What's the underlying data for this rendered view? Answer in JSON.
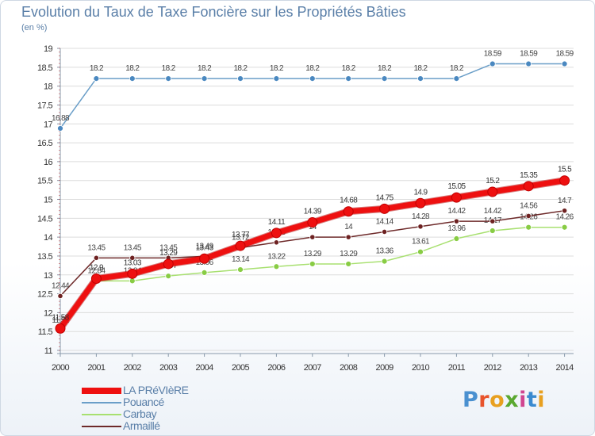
{
  "title": "Evolution du Taux de Taxe Foncière sur les Propriétés Bâties",
  "unit_label": "(en %)",
  "colors": {
    "title": "#5a7fa8",
    "axis": "#8899aa",
    "grid": "#dcdcdc"
  },
  "logo": {
    "letters": [
      "P",
      "r",
      "o",
      "x",
      "i",
      "t",
      "i"
    ],
    "colors": [
      "#4a90d0",
      "#e8532c",
      "#e8a020",
      "#5aa830",
      "#d04590",
      "#3a8ad0",
      "#e8a020"
    ]
  },
  "chart_data": {
    "type": "line",
    "title": "Evolution du Taux de Taxe Foncière sur les Propriétés Bâties",
    "ylabel": "(en %)",
    "xlabel": "",
    "ylim": [
      11,
      19
    ],
    "yticks": [
      11,
      11.5,
      12,
      12.5,
      13,
      13.5,
      14,
      14.5,
      15,
      15.5,
      16,
      16.5,
      17,
      17.5,
      18,
      18.5,
      19
    ],
    "categories": [
      "2000",
      "2001",
      "2002",
      "2003",
      "2004",
      "2005",
      "2006",
      "2007",
      "2008",
      "2009",
      "2010",
      "2011",
      "2012",
      "2013",
      "2014"
    ],
    "legend_position": "bottom-left",
    "series": [
      {
        "name": "Pouancé",
        "color": "#6a9ec8",
        "marker_color": "#4a88c0",
        "values": [
          16.88,
          18.2,
          18.2,
          18.2,
          18.2,
          18.2,
          18.2,
          18.2,
          18.2,
          18.2,
          18.2,
          18.2,
          18.59,
          18.59,
          18.59
        ],
        "labels": [
          "16.88",
          "18.2",
          "18.2",
          "18.2",
          "18.2",
          "18.2",
          "18.2",
          "18.2",
          "18.2",
          "18.2",
          "18.2",
          "18.2",
          "18.59",
          "18.59",
          "18.59"
        ]
      },
      {
        "name": "Carbay",
        "color": "#a8e070",
        "marker_color": "#88cc44",
        "values": [
          11.52,
          12.84,
          12.84,
          12.97,
          13.06,
          13.14,
          13.22,
          13.29,
          13.29,
          13.36,
          13.61,
          13.96,
          14.17,
          14.26,
          14.26
        ],
        "labels": [
          "11.52",
          "12.84",
          "12.84",
          "12.97",
          "13.06",
          "13.14",
          "13.22",
          "13.29",
          "13.29",
          "13.36",
          "13.61",
          "13.96",
          "14.17",
          "14.26",
          "14.26"
        ]
      },
      {
        "name": "Armaillé",
        "color": "#6e2a2a",
        "marker_color": "#6e2222",
        "values": [
          12.44,
          13.45,
          13.45,
          13.45,
          13.49,
          13.72,
          13.86,
          14,
          14,
          14.14,
          14.28,
          14.42,
          14.42,
          14.56,
          14.7
        ],
        "labels": [
          "12.44",
          "13.45",
          "13.45",
          "13.45",
          "13.49",
          "13.72",
          "13.86",
          "14",
          "14",
          "14.14",
          "14.28",
          "14.42",
          "14.42",
          "14.56",
          "14.7"
        ]
      },
      {
        "name": "LA PRéVIèRE",
        "color": "#ee1010",
        "marker_color": "#ee1010",
        "values": [
          11.58,
          12.9,
          13.03,
          13.29,
          13.43,
          13.77,
          14.11,
          14.39,
          14.68,
          14.75,
          14.9,
          15.05,
          15.2,
          15.35,
          15.5
        ],
        "labels": [
          "11.58",
          "12.9",
          "13.03",
          "13.29",
          "13.43",
          "13.77",
          "14.11",
          "14.39",
          "14.68",
          "14.75",
          "14.9",
          "15.05",
          "15.2",
          "15.35",
          "15.5"
        ]
      }
    ]
  },
  "legend": [
    {
      "name": "LA PRéVIèRE",
      "series_index": 3
    },
    {
      "name": "Pouancé",
      "series_index": 0
    },
    {
      "name": "Carbay",
      "series_index": 1
    },
    {
      "name": "Armaillé",
      "series_index": 2
    }
  ]
}
